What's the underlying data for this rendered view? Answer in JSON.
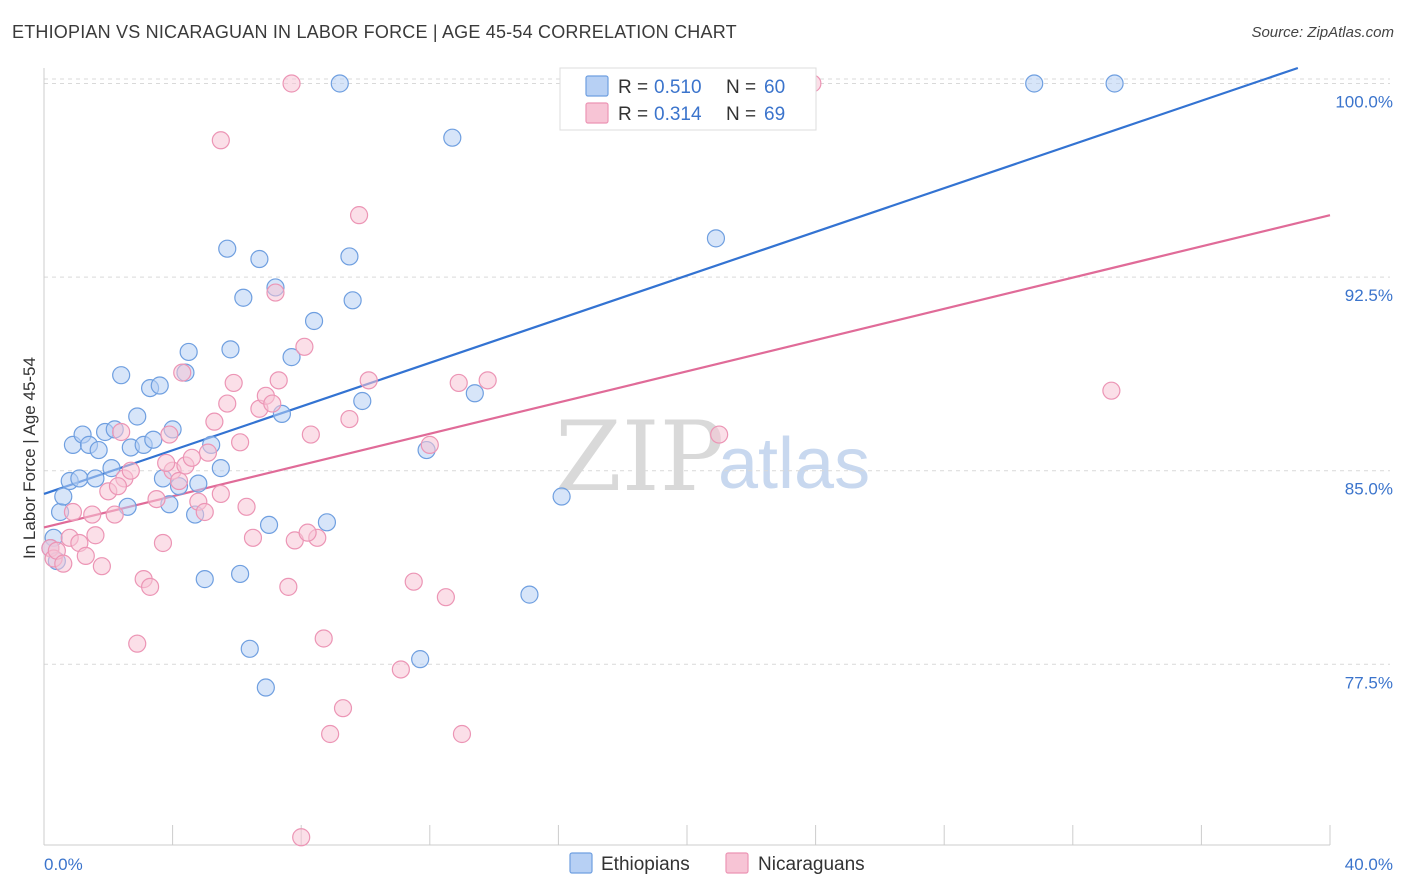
{
  "header": {
    "title": "ETHIOPIAN VS NICARAGUAN IN LABOR FORCE | AGE 45-54 CORRELATION CHART",
    "source": "Source: ZipAtlas.com"
  },
  "watermark": {
    "zip": "ZIP",
    "atlas": "atlas"
  },
  "colors": {
    "blue": "#3373d2",
    "blue_fill": "#b7d0f4",
    "blue_stroke": "#6f9fe0",
    "pink": "#e06b98",
    "pink_fill": "#f7c4d5",
    "pink_stroke": "#ec95b5",
    "grid": "#d9d9d9",
    "tick_label": "#3b74cc"
  },
  "legend": {
    "rows": [
      {
        "r_label": "R =",
        "r_value": "0.510",
        "n_label": "N =",
        "n_value": "60"
      },
      {
        "r_label": "R =",
        "r_value": "0.314",
        "n_label": "N =",
        "n_value": "69"
      }
    ]
  },
  "bottom_legend": {
    "items": [
      "Ethiopians",
      "Nicaraguans"
    ]
  },
  "chart_data": {
    "type": "scatter",
    "title": "ETHIOPIAN VS NICARAGUAN IN LABOR FORCE | AGE 45-54 CORRELATION CHART",
    "xlabel": "",
    "ylabel": "In Labor Force | Age 45-54",
    "xlim": [
      0,
      40
    ],
    "ylim": [
      70.5,
      100.6
    ],
    "x_tick_labels": [
      "0.0%",
      "40.0%"
    ],
    "y_ticks": [
      77.5,
      85.0,
      92.5,
      100.0
    ],
    "y_tick_labels": [
      "77.5%",
      "85.0%",
      "92.5%",
      "100.0%"
    ],
    "grid": true,
    "series": [
      {
        "name": "Ethiopians",
        "r": 0.51,
        "n": 60,
        "trend": {
          "x": [
            0,
            39
          ],
          "y": [
            84.1,
            100.6
          ]
        },
        "points": [
          [
            0.3,
            82.4
          ],
          [
            0.5,
            83.4
          ],
          [
            0.6,
            84.0
          ],
          [
            0.8,
            84.6
          ],
          [
            0.9,
            86.0
          ],
          [
            1.1,
            84.7
          ],
          [
            1.2,
            86.4
          ],
          [
            1.4,
            86.0
          ],
          [
            1.6,
            84.7
          ],
          [
            1.7,
            85.8
          ],
          [
            1.9,
            86.5
          ],
          [
            2.1,
            85.1
          ],
          [
            2.2,
            86.6
          ],
          [
            2.4,
            88.7
          ],
          [
            2.6,
            83.6
          ],
          [
            2.7,
            85.9
          ],
          [
            2.9,
            87.1
          ],
          [
            3.1,
            86.0
          ],
          [
            3.3,
            88.2
          ],
          [
            3.4,
            86.2
          ],
          [
            3.6,
            88.3
          ],
          [
            3.7,
            84.7
          ],
          [
            3.9,
            83.7
          ],
          [
            4.0,
            86.6
          ],
          [
            4.2,
            84.4
          ],
          [
            4.4,
            88.8
          ],
          [
            4.5,
            89.6
          ],
          [
            4.7,
            83.3
          ],
          [
            4.8,
            84.5
          ],
          [
            5.0,
            80.8
          ],
          [
            5.2,
            86.0
          ],
          [
            5.5,
            85.1
          ],
          [
            5.7,
            93.6
          ],
          [
            5.8,
            89.7
          ],
          [
            6.1,
            81.0
          ],
          [
            6.2,
            91.7
          ],
          [
            6.4,
            78.1
          ],
          [
            6.7,
            93.2
          ],
          [
            6.9,
            76.6
          ],
          [
            7.0,
            82.9
          ],
          [
            7.2,
            92.1
          ],
          [
            7.4,
            87.2
          ],
          [
            7.7,
            89.4
          ],
          [
            8.4,
            90.8
          ],
          [
            8.8,
            83.0
          ],
          [
            9.2,
            100.0
          ],
          [
            9.5,
            93.3
          ],
          [
            9.6,
            91.6
          ],
          [
            9.9,
            87.7
          ],
          [
            11.7,
            77.7
          ],
          [
            11.9,
            85.8
          ],
          [
            12.7,
            97.9
          ],
          [
            13.4,
            88.0
          ],
          [
            15.1,
            80.2
          ],
          [
            16.1,
            84.0
          ],
          [
            20.9,
            94.0
          ],
          [
            30.8,
            100.0
          ],
          [
            33.3,
            100.0
          ],
          [
            0.2,
            82.0
          ],
          [
            0.4,
            81.5
          ]
        ]
      },
      {
        "name": "Nicaraguans",
        "r": 0.314,
        "n": 69,
        "trend": {
          "x": [
            0,
            40
          ],
          "y": [
            82.8,
            94.9
          ]
        },
        "points": [
          [
            0.2,
            82.0
          ],
          [
            0.3,
            81.6
          ],
          [
            0.4,
            81.9
          ],
          [
            0.6,
            81.4
          ],
          [
            0.8,
            82.4
          ],
          [
            0.9,
            83.4
          ],
          [
            1.1,
            82.2
          ],
          [
            1.3,
            81.7
          ],
          [
            1.5,
            83.3
          ],
          [
            1.6,
            82.5
          ],
          [
            1.8,
            81.3
          ],
          [
            2.0,
            84.2
          ],
          [
            2.2,
            83.3
          ],
          [
            2.4,
            86.5
          ],
          [
            2.5,
            84.7
          ],
          [
            2.7,
            85.0
          ],
          [
            2.9,
            78.3
          ],
          [
            3.1,
            80.8
          ],
          [
            3.3,
            80.5
          ],
          [
            3.5,
            83.9
          ],
          [
            3.7,
            82.2
          ],
          [
            3.9,
            86.4
          ],
          [
            4.0,
            85.0
          ],
          [
            4.2,
            84.6
          ],
          [
            4.3,
            88.8
          ],
          [
            4.4,
            85.2
          ],
          [
            4.6,
            85.5
          ],
          [
            4.8,
            83.8
          ],
          [
            5.0,
            83.4
          ],
          [
            5.1,
            85.7
          ],
          [
            5.3,
            86.9
          ],
          [
            5.5,
            84.1
          ],
          [
            5.7,
            87.6
          ],
          [
            5.9,
            88.4
          ],
          [
            6.1,
            86.1
          ],
          [
            6.3,
            83.6
          ],
          [
            6.5,
            82.4
          ],
          [
            6.7,
            87.4
          ],
          [
            6.9,
            87.9
          ],
          [
            7.1,
            87.6
          ],
          [
            7.3,
            88.5
          ],
          [
            7.2,
            91.9
          ],
          [
            7.6,
            80.5
          ],
          [
            7.8,
            82.3
          ],
          [
            8.1,
            89.8
          ],
          [
            8.3,
            86.4
          ],
          [
            8.5,
            82.4
          ],
          [
            8.7,
            78.5
          ],
          [
            8.9,
            74.8
          ],
          [
            9.3,
            75.8
          ],
          [
            9.5,
            87.0
          ],
          [
            9.8,
            94.9
          ],
          [
            10.1,
            88.5
          ],
          [
            11.1,
            77.3
          ],
          [
            11.5,
            80.7
          ],
          [
            12.0,
            86.0
          ],
          [
            12.5,
            80.1
          ],
          [
            12.9,
            88.4
          ],
          [
            13.0,
            74.8
          ],
          [
            13.8,
            88.5
          ],
          [
            21.0,
            86.4
          ],
          [
            33.2,
            88.1
          ],
          [
            5.5,
            97.8
          ],
          [
            7.7,
            100.0
          ],
          [
            23.9,
            100.0
          ],
          [
            8.0,
            70.8
          ],
          [
            8.2,
            82.6
          ],
          [
            3.8,
            85.3
          ],
          [
            2.3,
            84.4
          ]
        ]
      }
    ]
  }
}
